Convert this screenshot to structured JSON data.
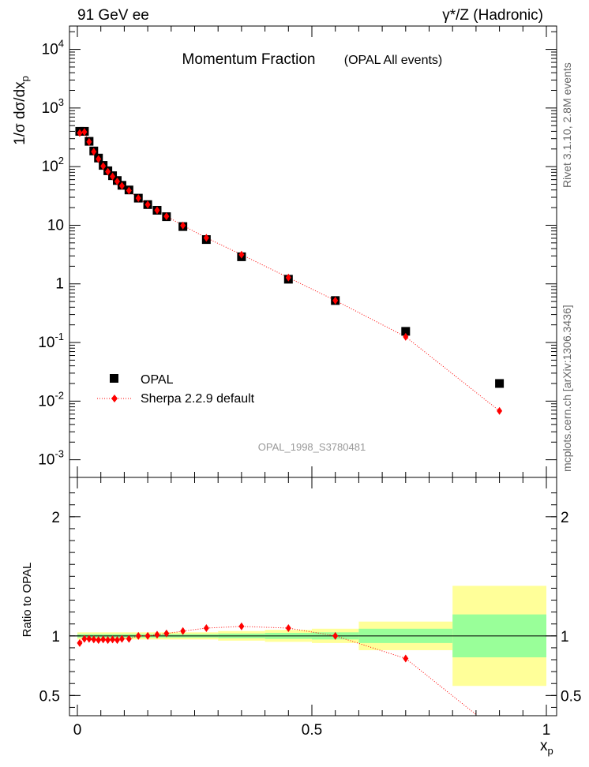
{
  "header": {
    "left": "91 GeV ee",
    "right": "γ*/Z (Hadronic)",
    "side_top": "Rivet 3.1.10,  2.8M events",
    "side_bottom": "mcplots.cern.ch [arXiv:1306.3436]"
  },
  "colors": {
    "data": "#000000",
    "mc": "#ff0000",
    "band_inner": "#99ff99",
    "band_outer": "#ffff99"
  },
  "chart_data": [
    {
      "type": "scatter",
      "title": "Momentum Fraction",
      "subtitle": "(OPAL All events)",
      "ylabel": "1/σ dσ/dx_p",
      "ylabel_main": "1/σ dσ/dx",
      "ylabel_sub": "p",
      "y_scale": "log",
      "xlim": [
        0,
        1
      ],
      "ylim": [
        0.0005,
        25000
      ],
      "y_ticks": [
        {
          "v": 0.001,
          "m": "10",
          "e": "-3"
        },
        {
          "v": 0.01,
          "m": "10",
          "e": "-2"
        },
        {
          "v": 0.1,
          "m": "10",
          "e": "-1"
        },
        {
          "v": 1,
          "m": "1",
          "e": ""
        },
        {
          "v": 10,
          "m": "10",
          "e": ""
        },
        {
          "v": 100,
          "m": "10",
          "e": "2"
        },
        {
          "v": 1000,
          "m": "10",
          "e": "3"
        },
        {
          "v": 10000,
          "m": "10",
          "e": "4"
        }
      ],
      "watermark": "OPAL_1998_S3780481",
      "legend_position": "lower-left",
      "series": [
        {
          "name": "OPAL",
          "marker": "square",
          "x": [
            0.005,
            0.015,
            0.025,
            0.035,
            0.045,
            0.055,
            0.065,
            0.075,
            0.085,
            0.095,
            0.11,
            0.13,
            0.15,
            0.17,
            0.19,
            0.225,
            0.275,
            0.35,
            0.45,
            0.55,
            0.7,
            0.9
          ],
          "y": [
            400,
            400,
            270,
            185,
            140,
            105,
            85,
            70,
            58,
            48,
            40,
            29,
            22.5,
            18,
            14,
            9.5,
            5.7,
            2.9,
            1.2,
            0.52,
            0.155,
            0.02
          ]
        },
        {
          "name": "Sherpa 2.2.9 default",
          "marker": "diamond",
          "x": [
            0.005,
            0.015,
            0.025,
            0.035,
            0.045,
            0.055,
            0.065,
            0.075,
            0.085,
            0.095,
            0.11,
            0.13,
            0.15,
            0.17,
            0.19,
            0.225,
            0.275,
            0.35,
            0.45,
            0.55,
            0.7,
            0.9
          ],
          "y": [
            375,
            390,
            265,
            180,
            135,
            102,
            82,
            68,
            56,
            47,
            39,
            29,
            22.5,
            18,
            14.2,
            9.9,
            6.1,
            3.15,
            1.28,
            0.52,
            0.125,
            0.0068
          ]
        }
      ]
    },
    {
      "type": "scatter",
      "ylabel": "Ratio to OPAL",
      "xlabel": "x_p",
      "xlabel_main": "x",
      "xlabel_sub": "p",
      "xlim": [
        0,
        1
      ],
      "ylim": [
        0.33,
        2.33
      ],
      "x_ticks": [
        {
          "v": 0,
          "t": "0"
        },
        {
          "v": 0.5,
          "t": "0.5"
        },
        {
          "v": 1,
          "t": "1"
        }
      ],
      "y_ticks": [
        {
          "v": 0.5,
          "t": "0.5"
        },
        {
          "v": 1,
          "t": "1"
        },
        {
          "v": 2,
          "t": "2"
        }
      ],
      "bands": [
        {
          "x0": 0.0,
          "x1": 0.3,
          "inner": [
            0.985,
            1.015
          ],
          "outer": [
            0.97,
            1.03
          ]
        },
        {
          "x0": 0.3,
          "x1": 0.4,
          "inner": [
            0.98,
            1.02
          ],
          "outer": [
            0.96,
            1.04
          ]
        },
        {
          "x0": 0.4,
          "x1": 0.5,
          "inner": [
            0.975,
            1.025
          ],
          "outer": [
            0.95,
            1.05
          ]
        },
        {
          "x0": 0.5,
          "x1": 0.6,
          "inner": [
            0.97,
            1.03
          ],
          "outer": [
            0.94,
            1.06
          ]
        },
        {
          "x0": 0.6,
          "x1": 0.8,
          "inner": [
            0.94,
            1.06
          ],
          "outer": [
            0.88,
            1.12
          ]
        },
        {
          "x0": 0.8,
          "x1": 1.0,
          "inner": [
            0.82,
            1.18
          ],
          "outer": [
            0.58,
            1.42
          ]
        }
      ],
      "series": [
        {
          "name": "Sherpa 2.2.9 default",
          "marker": "diamond",
          "x": [
            0.005,
            0.015,
            0.025,
            0.035,
            0.045,
            0.055,
            0.065,
            0.075,
            0.085,
            0.095,
            0.11,
            0.13,
            0.15,
            0.17,
            0.19,
            0.225,
            0.275,
            0.35,
            0.45,
            0.55,
            0.7
          ],
          "y": [
            0.94,
            0.975,
            0.975,
            0.97,
            0.965,
            0.97,
            0.965,
            0.97,
            0.965,
            0.975,
            0.975,
            1.0,
            1.0,
            1.01,
            1.02,
            1.04,
            1.065,
            1.08,
            1.065,
            1.0,
            0.81
          ],
          "line_end": {
            "x": 0.85,
            "y": 0.34
          }
        }
      ]
    }
  ]
}
